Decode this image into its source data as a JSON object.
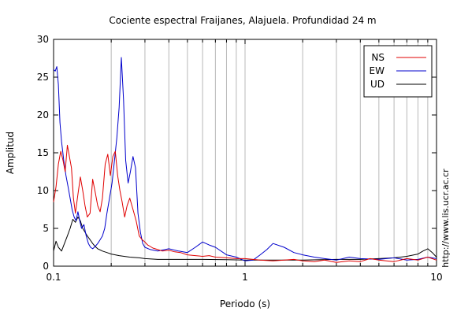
{
  "chart_data": {
    "type": "line",
    "title": "Cociente espectral Fraijanes, Alajuela. Profundidad 24 m",
    "xlabel": "Periodo (s)",
    "ylabel": "Amplitud",
    "x_scale": "log",
    "xlim": [
      0.1,
      10
    ],
    "ylim": [
      0,
      30
    ],
    "x_ticks": [
      {
        "value": 0.1,
        "label": "0.1"
      },
      {
        "value": 1,
        "label": "1"
      },
      {
        "value": 10,
        "label": "10"
      }
    ],
    "y_ticks": [
      {
        "value": 0,
        "label": "0"
      },
      {
        "value": 5,
        "label": "5"
      },
      {
        "value": 10,
        "label": "10"
      },
      {
        "value": 15,
        "label": "15"
      },
      {
        "value": 20,
        "label": "20"
      },
      {
        "value": 25,
        "label": "25"
      },
      {
        "value": 30,
        "label": "30"
      }
    ],
    "grid": "vertical, log minor ticks",
    "legend_position": "top-right",
    "annotation": "http://www.lis.ucr.ac.cr",
    "series": [
      {
        "name": "NS",
        "color": "#e00000",
        "x": [
          0.1,
          0.103,
          0.106,
          0.109,
          0.112,
          0.115,
          0.118,
          0.121,
          0.124,
          0.127,
          0.13,
          0.134,
          0.138,
          0.142,
          0.146,
          0.15,
          0.155,
          0.16,
          0.165,
          0.17,
          0.175,
          0.18,
          0.186,
          0.192,
          0.198,
          0.204,
          0.21,
          0.216,
          0.222,
          0.228,
          0.235,
          0.242,
          0.25,
          0.26,
          0.27,
          0.28,
          0.29,
          0.3,
          0.31,
          0.32,
          0.33,
          0.35,
          0.37,
          0.4,
          0.43,
          0.46,
          0.5,
          0.55,
          0.6,
          0.65,
          0.7,
          0.8,
          0.9,
          1.0,
          1.1,
          1.2,
          1.4,
          1.6,
          1.8,
          2.0,
          2.3,
          2.6,
          3.0,
          3.5,
          4.0,
          4.5,
          5.0,
          6.0,
          7.0,
          8.0,
          9.0,
          10.0
        ],
        "y": [
          8.5,
          10.5,
          13.5,
          15.2,
          14.0,
          12.5,
          16.0,
          14.5,
          13.0,
          9.0,
          7.0,
          9.5,
          11.8,
          10.0,
          8.0,
          6.5,
          7.0,
          11.5,
          9.8,
          8.0,
          7.2,
          9.0,
          13.5,
          14.8,
          12.0,
          14.5,
          15.2,
          12.0,
          10.0,
          8.5,
          6.5,
          8.0,
          9.0,
          7.5,
          6.0,
          4.0,
          3.5,
          3.2,
          2.8,
          2.6,
          2.4,
          2.2,
          2.0,
          2.1,
          1.9,
          1.8,
          1.5,
          1.4,
          1.3,
          1.4,
          1.2,
          1.1,
          1.0,
          1.0,
          0.9,
          0.8,
          0.7,
          0.8,
          0.9,
          0.7,
          0.6,
          0.8,
          0.5,
          0.7,
          0.6,
          1.0,
          0.8,
          0.6,
          1.0,
          0.8,
          1.2,
          0.8
        ]
      },
      {
        "name": "EW",
        "color": "#0000cc",
        "x": [
          0.1,
          0.102,
          0.104,
          0.106,
          0.108,
          0.11,
          0.113,
          0.116,
          0.119,
          0.122,
          0.125,
          0.128,
          0.131,
          0.134,
          0.137,
          0.14,
          0.144,
          0.148,
          0.152,
          0.156,
          0.16,
          0.165,
          0.17,
          0.175,
          0.18,
          0.185,
          0.19,
          0.196,
          0.202,
          0.208,
          0.214,
          0.22,
          0.226,
          0.232,
          0.238,
          0.245,
          0.252,
          0.26,
          0.268,
          0.276,
          0.284,
          0.292,
          0.3,
          0.32,
          0.35,
          0.4,
          0.45,
          0.5,
          0.55,
          0.6,
          0.65,
          0.7,
          0.8,
          0.9,
          1.0,
          1.1,
          1.2,
          1.3,
          1.4,
          1.6,
          1.8,
          2.0,
          2.3,
          2.6,
          3.0,
          3.5,
          4.0,
          5.0,
          6.0,
          7.0,
          8.0,
          9.0,
          10.0
        ],
        "y": [
          26.0,
          25.8,
          26.4,
          24.0,
          19.0,
          16.5,
          14.0,
          12.0,
          10.5,
          9.0,
          7.5,
          6.5,
          6.0,
          7.2,
          6.0,
          5.0,
          5.5,
          4.0,
          3.0,
          2.5,
          2.3,
          2.6,
          3.0,
          3.5,
          4.0,
          5.0,
          7.0,
          9.0,
          11.0,
          14.0,
          17.0,
          21.0,
          27.6,
          22.0,
          14.0,
          11.0,
          12.5,
          14.5,
          13.0,
          7.0,
          4.5,
          3.0,
          2.5,
          2.2,
          2.0,
          2.3,
          2.0,
          1.8,
          2.5,
          3.2,
          2.8,
          2.5,
          1.5,
          1.2,
          0.7,
          0.8,
          1.5,
          2.2,
          3.0,
          2.5,
          1.8,
          1.5,
          1.2,
          1.0,
          0.8,
          1.2,
          1.0,
          0.9,
          1.1,
          0.8,
          0.9,
          1.2,
          1.0
        ]
      },
      {
        "name": "UD",
        "color": "#000000",
        "x": [
          0.1,
          0.103,
          0.106,
          0.11,
          0.114,
          0.118,
          0.122,
          0.126,
          0.13,
          0.134,
          0.138,
          0.142,
          0.146,
          0.15,
          0.155,
          0.16,
          0.165,
          0.17,
          0.18,
          0.19,
          0.2,
          0.22,
          0.25,
          0.28,
          0.3,
          0.35,
          0.4,
          0.5,
          0.6,
          0.8,
          1.0,
          1.5,
          2.0,
          3.0,
          4.0,
          5.0,
          6.0,
          7.0,
          8.0,
          8.5,
          9.0,
          9.5,
          10.0
        ],
        "y": [
          2.0,
          3.3,
          2.5,
          2.0,
          3.0,
          4.0,
          5.0,
          6.2,
          5.8,
          6.5,
          6.0,
          5.0,
          4.5,
          4.0,
          3.5,
          3.0,
          2.6,
          2.3,
          2.0,
          1.8,
          1.6,
          1.4,
          1.2,
          1.1,
          1.0,
          0.9,
          0.9,
          0.9,
          0.9,
          0.85,
          0.8,
          0.8,
          0.8,
          0.9,
          0.9,
          1.0,
          1.1,
          1.3,
          1.6,
          2.0,
          2.3,
          1.8,
          1.2
        ]
      }
    ]
  }
}
